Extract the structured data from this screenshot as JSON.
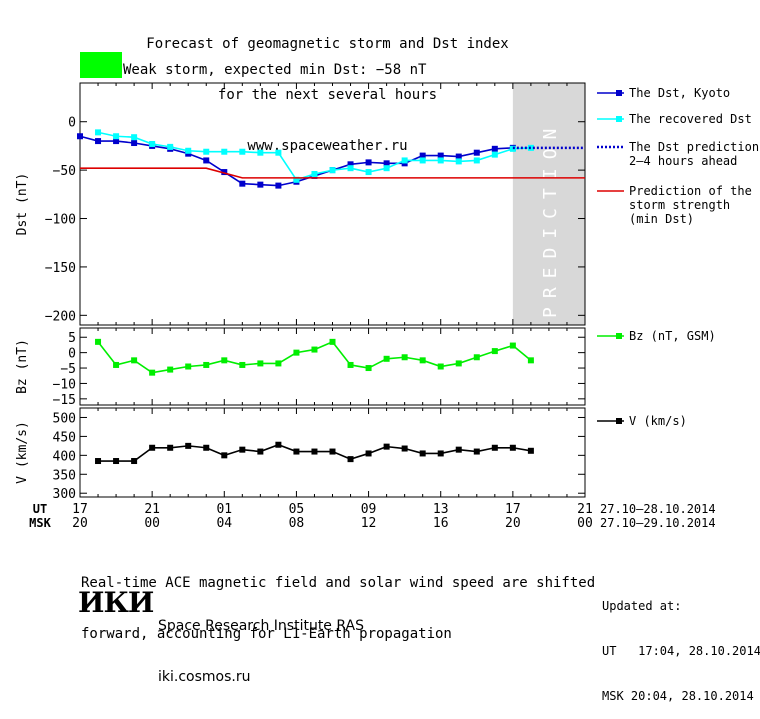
{
  "title_lines": [
    "Forecast of geomagnetic storm and Dst index",
    "for the next several hours",
    "www.spaceweather.ru"
  ],
  "storm": {
    "label": "Weak storm, expected min Dst: −58 nT",
    "color": "#00ff00"
  },
  "prediction_band_text": "PREDICTION",
  "panels": {
    "dst": {
      "ylabel": "Dst (nT)",
      "ticks": [
        0,
        -50,
        -100,
        -150,
        -200
      ],
      "tick_labels": [
        "0",
        "−50",
        "−100",
        "−150",
        "−200"
      ],
      "ylim": [
        -210,
        40
      ]
    },
    "bz": {
      "ylabel": "Bz (nT)",
      "ticks": [
        5,
        0,
        -5,
        -10,
        -15
      ],
      "tick_labels": [
        "5",
        "0",
        "−5",
        "−10",
        "−15"
      ],
      "ylim": [
        -17,
        8
      ]
    },
    "v": {
      "ylabel": "V (km/s)",
      "ticks": [
        500,
        450,
        400,
        350,
        300
      ],
      "tick_labels": [
        "500",
        "450",
        "400",
        "350",
        "300"
      ],
      "ylim": [
        290,
        525
      ]
    }
  },
  "x_axis": {
    "ut_label": "UT",
    "msk_label": "MSK",
    "ut_ticks": [
      "17",
      "21",
      "01",
      "05",
      "09",
      "13",
      "17",
      "21"
    ],
    "msk_ticks": [
      "20",
      "00",
      "04",
      "08",
      "12",
      "16",
      "20",
      "00"
    ],
    "ut_range": "27.10–28.10.2014",
    "msk_range": "27.10–29.10.2014"
  },
  "chart_data": [
    {
      "type": "line",
      "x_unit": "hours since 17 UT 27.10.2014",
      "xlim": [
        0,
        28
      ],
      "ylabel": "Dst (nT)",
      "ylim": [
        -210,
        40
      ],
      "prediction_band_x": [
        24,
        28
      ],
      "series": [
        {
          "name": "The Dst, Kyoto",
          "color": "#0000cc",
          "marker": "square",
          "x": [
            0,
            1,
            2,
            3,
            4,
            5,
            6,
            7,
            8,
            9,
            10,
            11,
            12,
            13,
            14,
            15,
            16,
            17,
            18,
            19,
            20,
            21,
            22,
            23,
            24
          ],
          "y": [
            -15,
            -20,
            -20,
            -22,
            -25,
            -28,
            -33,
            -40,
            -52,
            -64,
            -65,
            -66,
            -62,
            -56,
            -50,
            -44,
            -42,
            -43,
            -43,
            -35,
            -35,
            -36,
            -32,
            -28,
            -27
          ]
        },
        {
          "name": "The recovered Dst",
          "color": "#00ffff",
          "marker": "square",
          "x": [
            1,
            2,
            3,
            4,
            5,
            6,
            7,
            8,
            9,
            10,
            11,
            12,
            13,
            14,
            15,
            16,
            17,
            18,
            19,
            20,
            21,
            22,
            23,
            24,
            25
          ],
          "y": [
            -11,
            -15,
            -16,
            -23,
            -26,
            -30,
            -31,
            -31,
            -31,
            -32,
            -32,
            -60,
            -54,
            -50,
            -48,
            -52,
            -48,
            -40,
            -40,
            -40,
            -41,
            -40,
            -34,
            -28,
            -27
          ]
        },
        {
          "name": "The Dst prediction 2–4 hours ahead",
          "color": "#0000cc",
          "style": "dotted",
          "x": [
            24,
            28
          ],
          "y": [
            -27,
            -27
          ]
        },
        {
          "name": "Prediction of the storm strength (min Dst)",
          "color": "#dd0000",
          "x": [
            0,
            7,
            9,
            28
          ],
          "y": [
            -48,
            -48,
            -58,
            -58
          ]
        }
      ],
      "legend": [
        {
          "text": [
            "The Dst, Kyoto"
          ],
          "color": "#0000cc",
          "style": "marker"
        },
        {
          "text": [
            "The recovered Dst"
          ],
          "color": "#00ffff",
          "style": "marker"
        },
        {
          "text": [
            "The Dst prediction",
            "2–4 hours ahead"
          ],
          "color": "#0000cc",
          "style": "dotted"
        },
        {
          "text": [
            "Prediction of the",
            "storm strength",
            "(min Dst)"
          ],
          "color": "#dd0000",
          "style": "line"
        }
      ]
    },
    {
      "type": "line",
      "ylabel": "Bz (nT)",
      "ylim": [
        -17,
        8
      ],
      "series": [
        {
          "name": "Bz (nT, GSM)",
          "color": "#00ee00",
          "marker": "square",
          "x": [
            1,
            2,
            3,
            4,
            5,
            6,
            7,
            8,
            9,
            10,
            11,
            12,
            13,
            14,
            15,
            16,
            17,
            18,
            19,
            20,
            21,
            22,
            23,
            24,
            25
          ],
          "y": [
            3.5,
            -4,
            -2.5,
            -6.5,
            -5.5,
            -4.5,
            -4,
            -2.5,
            -4,
            -3.5,
            -3.5,
            0,
            1,
            3.5,
            -4,
            -5,
            -2,
            -1.5,
            -2.5,
            -4.5,
            -3.5,
            -1.5,
            0.5,
            2.3,
            -2.5
          ]
        }
      ],
      "legend": [
        {
          "text": [
            "Bz (nT, GSM)"
          ],
          "color": "#00ee00",
          "style": "marker"
        }
      ]
    },
    {
      "type": "line",
      "ylabel": "V (km/s)",
      "ylim": [
        290,
        525
      ],
      "series": [
        {
          "name": "V (km/s)",
          "color": "#000000",
          "marker": "square",
          "x": [
            1,
            2,
            3,
            4,
            5,
            6,
            7,
            8,
            9,
            10,
            11,
            12,
            13,
            14,
            15,
            16,
            17,
            18,
            19,
            20,
            21,
            22,
            23,
            24,
            25
          ],
          "y": [
            385,
            385,
            385,
            420,
            420,
            425,
            420,
            400,
            415,
            410,
            428,
            410,
            410,
            410,
            390,
            405,
            423,
            418,
            405,
            405,
            415,
            410,
            420,
            420,
            412
          ]
        }
      ],
      "legend": [
        {
          "text": [
            "V (km/s)"
          ],
          "color": "#000000",
          "style": "marker"
        }
      ]
    }
  ],
  "footer": {
    "note": [
      "Real-time ACE magnetic field and solar wind speed are shifted",
      "forward, accounting for L1-Earth propagation"
    ],
    "logo_text": "ИКИ",
    "institute": "Space Research Institute RAS",
    "site": "iki.cosmos.ru",
    "updated_label": "Updated at:",
    "updated_ut": "UT   17:04, 28.10.2014",
    "updated_msk": "MSK 20:04, 28.10.2014"
  }
}
